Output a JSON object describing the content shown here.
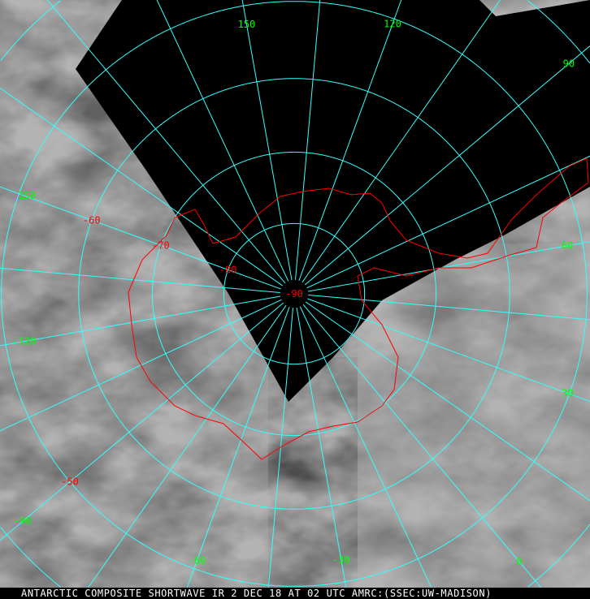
{
  "caption": "ANTARCTIC COMPOSITE SHORTWAVE IR 2 DEC 18 AT 02 UTC AMRC:(SSEC:UW-MADISON)",
  "projection": "polar stereographic, south pole",
  "colors": {
    "grid": "#33ffff",
    "coast": "#ff0000",
    "lon_label": "#00ff00",
    "lat_label": "#ff0000",
    "no_data": "#000000"
  },
  "latitudes": [
    -80,
    -70,
    -60,
    -50,
    -40,
    -30,
    -20
  ],
  "longitude_step": 15,
  "lon_labels": [
    "150",
    "120",
    "90",
    "60",
    "30",
    "0",
    "-30",
    "-60",
    "-90",
    "-120",
    "-150"
  ],
  "lat_labels": [
    {
      "text": "-90",
      "lat": -90,
      "lon": -150
    },
    {
      "text": "-80",
      "lat": -80,
      "lon": -150
    },
    {
      "text": "-70",
      "lat": -70,
      "lon": -150
    },
    {
      "text": "-60",
      "lat": -60,
      "lon": -150
    },
    {
      "text": "-50",
      "lat": -50,
      "lon": -90
    }
  ]
}
